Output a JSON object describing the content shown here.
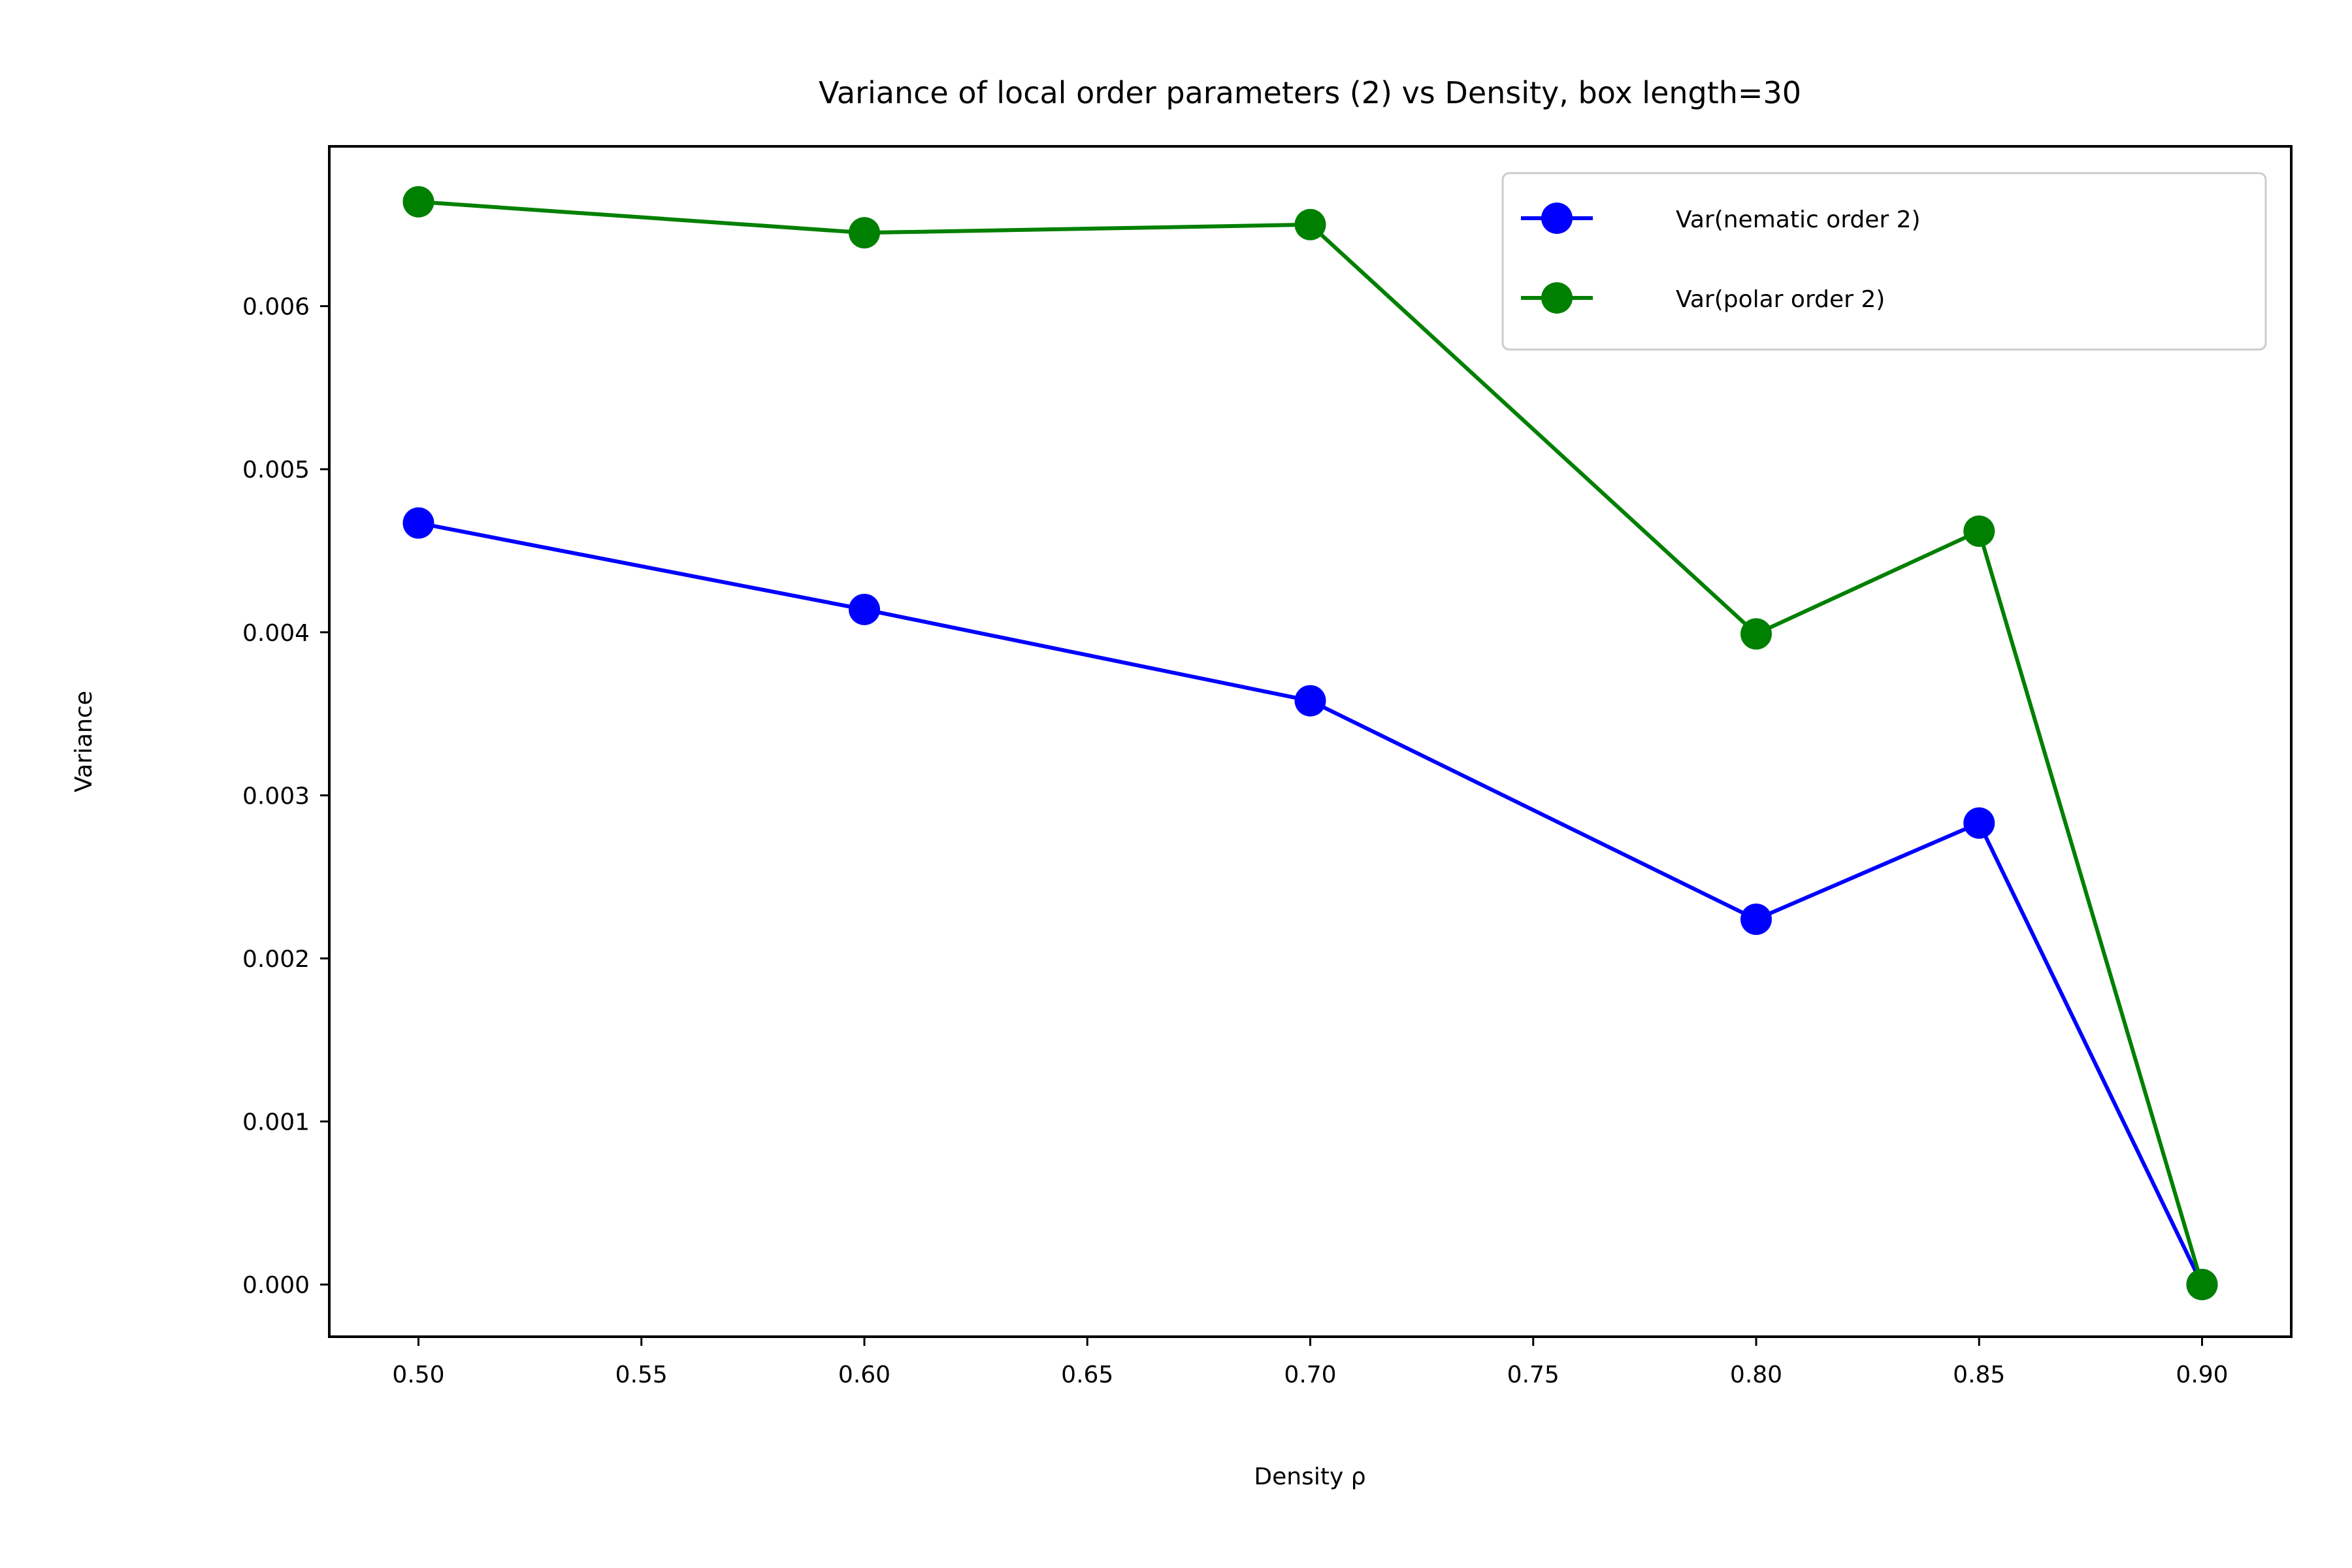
{
  "chart_data": {
    "type": "line",
    "title": "Variance of local order parameters (2) vs Density, box length=30",
    "xlabel": "Density ρ",
    "ylabel": "Variance",
    "xlim": [
      0.48,
      0.92
    ],
    "ylim": [
      -0.00032,
      0.00698
    ],
    "xticks": [
      "0.50",
      "0.55",
      "0.60",
      "0.65",
      "0.70",
      "0.75",
      "0.80",
      "0.85",
      "0.90"
    ],
    "yticks": [
      "0.000",
      "0.001",
      "0.002",
      "0.003",
      "0.004",
      "0.005",
      "0.006"
    ],
    "grid": false,
    "legend_position": "upper right",
    "x": [
      0.5,
      0.6,
      0.7,
      0.8,
      0.85,
      0.9
    ],
    "series": [
      {
        "name": "Var(nematic order 2)",
        "color": "#0000ff",
        "values": [
          0.00467,
          0.00414,
          0.00358,
          0.00224,
          0.00283,
          0.0
        ]
      },
      {
        "name": "Var(polar order 2)",
        "color": "#008000",
        "values": [
          0.00664,
          0.00645,
          0.0065,
          0.00399,
          0.00462,
          0.0
        ]
      }
    ]
  }
}
